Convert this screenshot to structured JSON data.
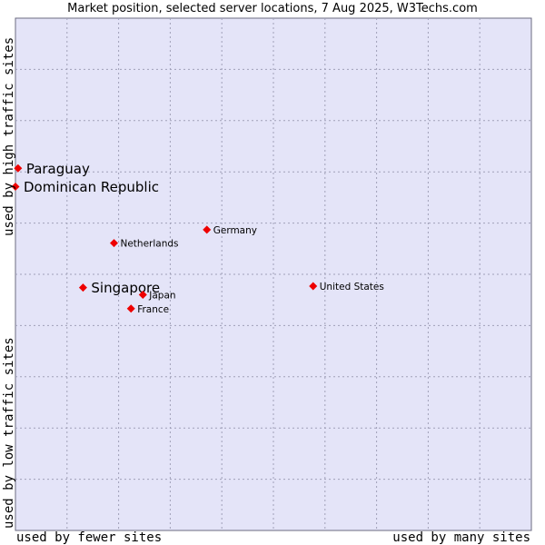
{
  "chart_data": {
    "type": "scatter",
    "title": "Market position, selected server locations, 7 Aug 2025, W3Techs.com",
    "xlabel_low": "used by fewer sites",
    "xlabel_high": "used by many sites",
    "ylabel_low": "used by low traffic sites",
    "ylabel_high": "used by high traffic sites",
    "xlim": [
      0,
      1
    ],
    "ylim": [
      0,
      1
    ],
    "grid": true,
    "colors": {
      "plot_background": "#e4e4f8",
      "grid": "#a0a0b8",
      "frame": "#6b6b80",
      "marker": "#ee0000"
    },
    "points": [
      {
        "name": "Paraguay",
        "x": 0.005,
        "y": 0.707,
        "emphasis": true
      },
      {
        "name": "Dominican Republic",
        "x": 0.0,
        "y": 0.671,
        "emphasis": true
      },
      {
        "name": "Germany",
        "x": 0.371,
        "y": 0.587,
        "emphasis": false
      },
      {
        "name": "Netherlands",
        "x": 0.191,
        "y": 0.561,
        "emphasis": false
      },
      {
        "name": "Singapore",
        "x": 0.131,
        "y": 0.474,
        "emphasis": true
      },
      {
        "name": "United States",
        "x": 0.577,
        "y": 0.477,
        "emphasis": false
      },
      {
        "name": "Japan",
        "x": 0.247,
        "y": 0.46,
        "emphasis": false
      },
      {
        "name": "France",
        "x": 0.224,
        "y": 0.433,
        "emphasis": false
      }
    ]
  }
}
